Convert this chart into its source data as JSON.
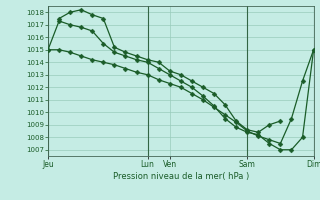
{
  "bg_color": "#c5ece4",
  "grid_color": "#99ccbb",
  "line_color": "#1a5c28",
  "marker_color": "#1a5c28",
  "vline_color": "#336644",
  "title": "Pression niveau de la mer( hPa )",
  "ylim": [
    1006.5,
    1018.5
  ],
  "yticks": [
    1007,
    1008,
    1009,
    1010,
    1011,
    1012,
    1013,
    1014,
    1015,
    1016,
    1017,
    1018
  ],
  "xtick_labels": [
    "Jeu",
    "Lun",
    "Ven",
    "Sam",
    "Dim"
  ],
  "xtick_positions": [
    0,
    9,
    11,
    18,
    24
  ],
  "vline_positions": [
    0,
    9,
    18,
    24
  ],
  "xlim": [
    0,
    24
  ],
  "series1_x": [
    0,
    1,
    2,
    3,
    4,
    5,
    6,
    7,
    8,
    9,
    10,
    11,
    12,
    13,
    14,
    15,
    16,
    17,
    18,
    19,
    20,
    21,
    22,
    23,
    24
  ],
  "series1_y": [
    1015.0,
    1015.0,
    1014.8,
    1014.5,
    1014.2,
    1014.0,
    1013.8,
    1013.5,
    1013.2,
    1013.0,
    1012.6,
    1012.3,
    1012.0,
    1011.5,
    1011.0,
    1010.4,
    1009.8,
    1009.2,
    1008.5,
    1008.1,
    1007.8,
    1007.5,
    1009.5,
    1012.5,
    1015.0
  ],
  "series2_x": [
    0,
    1,
    2,
    3,
    4,
    5,
    6,
    7,
    8,
    9,
    10,
    11,
    12,
    13,
    14,
    15,
    16,
    17,
    18,
    19,
    20,
    21,
    22,
    23,
    24
  ],
  "series2_y": [
    1015.0,
    1017.3,
    1017.0,
    1016.8,
    1016.5,
    1015.5,
    1014.8,
    1014.5,
    1014.2,
    1014.0,
    1013.5,
    1013.0,
    1012.5,
    1012.0,
    1011.3,
    1010.5,
    1009.5,
    1008.8,
    1008.4,
    1008.2,
    1007.5,
    1007.0,
    1007.0,
    1008.0,
    1015.0
  ],
  "series3_x": [
    1,
    2,
    3,
    4,
    5,
    6,
    7,
    8,
    9,
    10,
    11,
    12,
    13,
    14,
    15,
    16,
    17,
    18,
    19,
    20,
    21
  ],
  "series3_y": [
    1017.5,
    1018.0,
    1018.2,
    1017.8,
    1017.5,
    1015.2,
    1014.8,
    1014.5,
    1014.2,
    1014.0,
    1013.3,
    1013.0,
    1012.5,
    1012.0,
    1011.5,
    1010.6,
    1009.3,
    1008.6,
    1008.4,
    1009.0,
    1009.3
  ]
}
